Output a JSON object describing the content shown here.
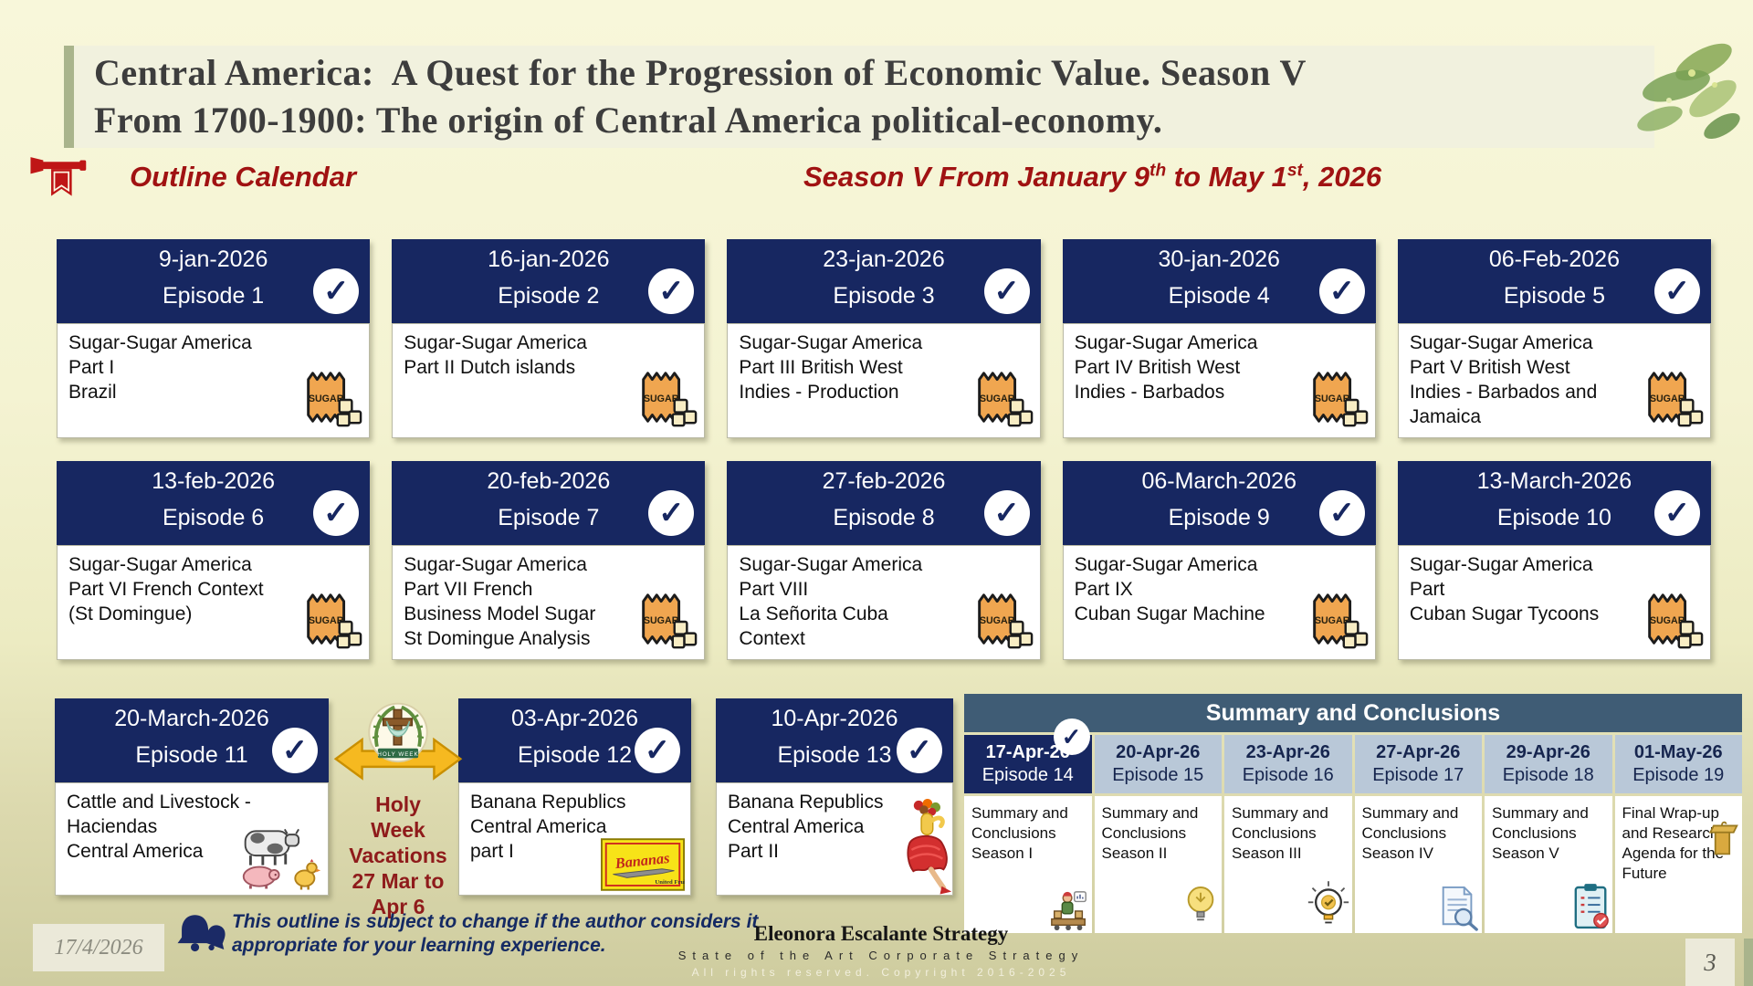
{
  "slide": {
    "title_line1": "Central America:  A Quest for the Progression of Economic Value. Season V",
    "title_line2": "From 1700-1900: The origin of Central America political-economy.",
    "page_number": "3"
  },
  "headings": {
    "outline": "Outline Calendar",
    "season_prefix": "Season V From January 9",
    "season_sup1": "th",
    "season_mid": " to May 1",
    "season_sup2": "st",
    "season_suffix": ", 2026"
  },
  "calendar": {
    "rows": [
      [
        {
          "date": "9-jan-2026",
          "episode": "Episode 1",
          "description": "Sugar-Sugar America\nPart I\nBrazil",
          "icon": "sugar-bag-icon",
          "checked": true
        },
        {
          "date": "16-jan-2026",
          "episode": "Episode 2",
          "description": "Sugar-Sugar America\nPart II Dutch islands",
          "icon": "sugar-bag-icon",
          "checked": true
        },
        {
          "date": "23-jan-2026",
          "episode": "Episode 3",
          "description": "Sugar-Sugar America\nPart III British West\nIndies - Production",
          "icon": "sugar-bag-icon",
          "checked": true
        },
        {
          "date": "30-jan-2026",
          "episode": "Episode 4",
          "description": "Sugar-Sugar America\nPart IV British West\nIndies - Barbados",
          "icon": "sugar-bag-icon",
          "checked": true
        },
        {
          "date": "06-Feb-2026",
          "episode": "Episode 5",
          "description": "Sugar-Sugar America\nPart V British West\nIndies - Barbados and\nJamaica",
          "icon": "sugar-bag-icon",
          "checked": true
        }
      ],
      [
        {
          "date": "13-feb-2026",
          "episode": "Episode 6",
          "description": "Sugar-Sugar America\nPart VI French Context\n (St Domingue)",
          "icon": "sugar-bag-icon",
          "checked": true
        },
        {
          "date": "20-feb-2026",
          "episode": "Episode 7",
          "description": "Sugar-Sugar America\nPart VII French\nBusiness Model Sugar\nSt Domingue Analysis",
          "icon": "sugar-bag-icon",
          "checked": true
        },
        {
          "date": "27-feb-2026",
          "episode": "Episode 8",
          "description": "Sugar-Sugar America\nPart VIII\nLa Señorita Cuba\nContext",
          "icon": "sugar-bag-icon",
          "checked": true
        },
        {
          "date": "06-March-2026",
          "episode": "Episode 9",
          "description": "Sugar-Sugar America\nPart IX\nCuban Sugar Machine",
          "icon": "sugar-bag-icon",
          "checked": true
        },
        {
          "date": "13-March-2026",
          "episode": "Episode 10",
          "description": "Sugar-Sugar America\nPart\nCuban Sugar Tycoons",
          "icon": "sugar-bag-icon",
          "checked": true
        }
      ],
      [
        {
          "date": "20-March-2026",
          "episode": "Episode 11",
          "description": "Cattle and Livestock -\nHaciendas\nCentral America",
          "icon": "farm-animals-icon",
          "checked": true
        },
        {
          "date": "03-Apr-2026",
          "episode": "Episode 12",
          "description": "Banana Republics\nCentral America\npart I",
          "icon": "bananas-logo-icon",
          "checked": true
        },
        {
          "date": "10-Apr-2026",
          "episode": "Episode 13",
          "description": "Banana Republics\nCentral America\nPart II",
          "icon": "banana-lady-icon",
          "checked": true
        }
      ]
    ]
  },
  "holy_week": {
    "text": "Holy\nWeek\nVacations\n27 Mar to\nApr 6"
  },
  "summary": {
    "title": "Summary and Conclusions",
    "columns": [
      {
        "date": "17-Apr-26",
        "episode": "Episode 14",
        "description": "Summary and Conclusions Season I",
        "icon": "factory-worker-icon",
        "checked": true,
        "highlighted": true
      },
      {
        "date": "20-Apr-26",
        "episode": "Episode 15",
        "description": "Summary and Conclusions Season II",
        "icon": "lightbulb-icon",
        "checked": false,
        "highlighted": false
      },
      {
        "date": "23-Apr-26",
        "episode": "Episode 16",
        "description": "Summary and Conclusions Season III",
        "icon": "lightbulb-check-icon",
        "checked": false,
        "highlighted": false
      },
      {
        "date": "27-Apr-26",
        "episode": "Episode 17",
        "description": "Summary and Conclusions Season IV",
        "icon": "document-magnifier-icon",
        "checked": false,
        "highlighted": false
      },
      {
        "date": "29-Apr-26",
        "episode": "Episode 18",
        "description": "Summary and Conclusions Season V",
        "icon": "clipboard-check-icon",
        "checked": false,
        "highlighted": false
      },
      {
        "date": "01-May-26",
        "episode": "Episode 19",
        "description": "Final Wrap-up and Research Agenda for the Future",
        "icon": "podium-icon",
        "checked": false,
        "highlighted": false
      }
    ]
  },
  "footer": {
    "date": "17/4/2026",
    "note_line1": "This outline is subject to change if the author considers it",
    "note_line2": "appropriate for your learning experience.",
    "brand_name": "Eleonora Escalante Strategy",
    "brand_tagline": "State of the Art Corporate Strategy",
    "brand_copyright": "All rights reserved. Copyright 2016-2025"
  },
  "colors": {
    "navy": "#172761",
    "slate_blue": "#3f5c75",
    "light_blue": "#b9c8d8",
    "dark_red": "#a01212",
    "sage": "#a9b48c",
    "gold_arrow": "#f6b920",
    "sugar_orange": "#f0a650"
  }
}
